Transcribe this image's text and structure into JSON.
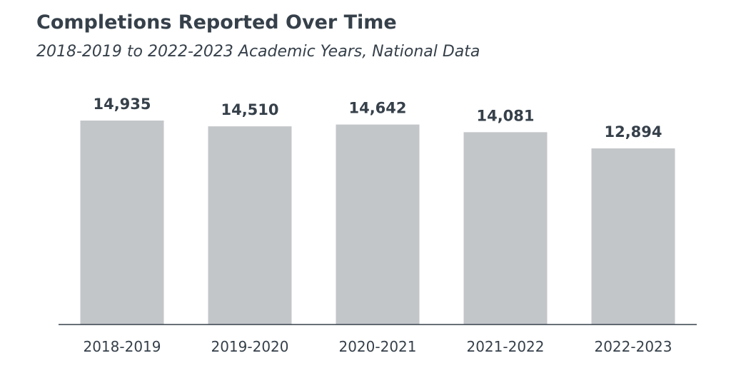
{
  "chart_data": {
    "type": "bar",
    "title": "Completions Reported Over Time",
    "subtitle": "2018-2019 to 2022-2023 Academic Years, National Data",
    "xlabel": "",
    "ylabel": "",
    "categories": [
      "2018-2019",
      "2019-2020",
      "2020-2021",
      "2021-2022",
      "2022-2023"
    ],
    "values": [
      14935,
      14510,
      14642,
      14081,
      12894
    ],
    "value_labels": [
      "14,935",
      "14,510",
      "14,642",
      "14,081",
      "12,894"
    ],
    "ylim": [
      0,
      16500
    ],
    "grid": false,
    "legend": "none",
    "bar_color": "#c3c6c9",
    "text_color": "#36404a"
  }
}
